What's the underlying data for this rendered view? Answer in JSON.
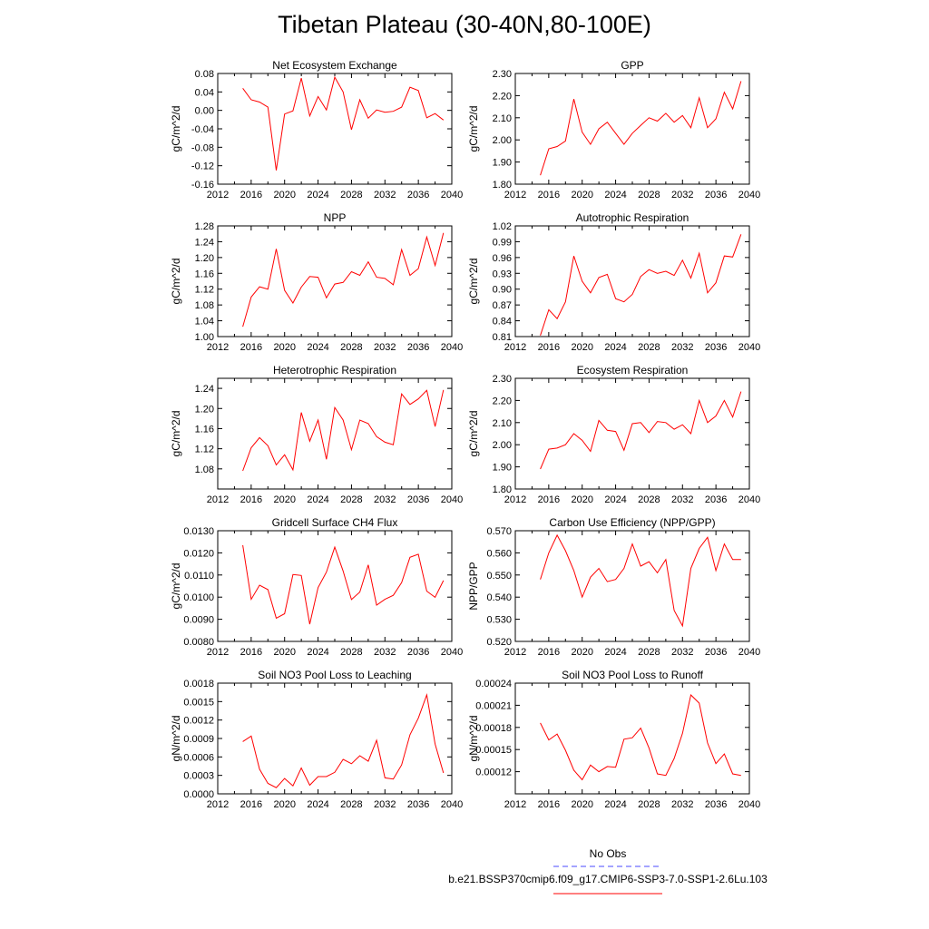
{
  "page": {
    "title": "Tibetan Plateau (30-40N,80-100E)"
  },
  "legend": {
    "entries": [
      {
        "label": "No Obs",
        "color": "#4a4aff",
        "dash": true
      },
      {
        "label": "b.e21.BSSP370cmip6.f09_g17.CMIP6-SSP3-7.0-SSP1-2.6Lu.103",
        "color": "#ff0000",
        "dash": false
      }
    ]
  },
  "chart_data": [
    {
      "type": "line",
      "title": "Net Ecosystem Exchange",
      "ylabel": "gC/m^2/d",
      "xlabel": "",
      "xlim": [
        2012,
        2040
      ],
      "xticks": [
        2012,
        2016,
        2020,
        2024,
        2028,
        2032,
        2036,
        2040
      ],
      "ylim": [
        -0.16,
        0.08
      ],
      "yticks": [
        -0.16,
        -0.12,
        -0.08,
        -0.04,
        0.0,
        0.04,
        0.08
      ],
      "ytick_labels": [
        "-0.16",
        "-0.12",
        "-0.08",
        "-0.04",
        "0.00",
        "0.04",
        "0.08"
      ],
      "series": [
        {
          "color": "#ff0000",
          "x": [
            2015,
            2016,
            2017,
            2018,
            2019,
            2020,
            2021,
            2022,
            2023,
            2024,
            2025,
            2026,
            2027,
            2028,
            2029,
            2030,
            2031,
            2032,
            2033,
            2034,
            2035,
            2036,
            2037,
            2038,
            2039
          ],
          "y": [
            0.048,
            0.023,
            0.018,
            0.007,
            -0.13,
            -0.008,
            -0.001,
            0.07,
            -0.012,
            0.03,
            0.001,
            0.072,
            0.04,
            -0.042,
            0.023,
            -0.017,
            0.001,
            -0.004,
            -0.002,
            0.007,
            0.05,
            0.043,
            -0.016,
            -0.007,
            -0.021
          ]
        }
      ]
    },
    {
      "type": "line",
      "title": "GPP",
      "ylabel": "gC/m^2/d",
      "xlabel": "",
      "xlim": [
        2012,
        2040
      ],
      "xticks": [
        2012,
        2016,
        2020,
        2024,
        2028,
        2032,
        2036,
        2040
      ],
      "ylim": [
        1.8,
        2.3
      ],
      "yticks": [
        1.8,
        1.9,
        2.0,
        2.1,
        2.2,
        2.3
      ],
      "ytick_labels": [
        "1.80",
        "1.90",
        "2.00",
        "2.10",
        "2.20",
        "2.30"
      ],
      "series": [
        {
          "color": "#ff0000",
          "x": [
            2015,
            2016,
            2017,
            2018,
            2019,
            2020,
            2021,
            2022,
            2023,
            2024,
            2025,
            2026,
            2027,
            2028,
            2029,
            2030,
            2031,
            2032,
            2033,
            2034,
            2035,
            2036,
            2037,
            2038,
            2039
          ],
          "y": [
            1.84,
            1.96,
            1.97,
            1.995,
            2.185,
            2.035,
            1.98,
            2.05,
            2.08,
            2.03,
            1.98,
            2.03,
            2.065,
            2.1,
            2.085,
            2.12,
            2.08,
            2.11,
            2.055,
            2.19,
            2.055,
            2.095,
            2.215,
            2.14,
            2.265
          ]
        }
      ]
    },
    {
      "type": "line",
      "title": "NPP",
      "ylabel": "gC/m^2/d",
      "xlabel": "",
      "xlim": [
        2012,
        2040
      ],
      "xticks": [
        2012,
        2016,
        2020,
        2024,
        2028,
        2032,
        2036,
        2040
      ],
      "ylim": [
        1.0,
        1.28
      ],
      "yticks": [
        1.0,
        1.04,
        1.08,
        1.12,
        1.16,
        1.2,
        1.24,
        1.28
      ],
      "ytick_labels": [
        "1.00",
        "1.04",
        "1.08",
        "1.12",
        "1.16",
        "1.20",
        "1.24",
        "1.28"
      ],
      "series": [
        {
          "color": "#ff0000",
          "x": [
            2015,
            2016,
            2017,
            2018,
            2019,
            2020,
            2021,
            2022,
            2023,
            2024,
            2025,
            2026,
            2027,
            2028,
            2029,
            2030,
            2031,
            2032,
            2033,
            2034,
            2035,
            2036,
            2037,
            2038,
            2039
          ],
          "y": [
            1.025,
            1.1,
            1.126,
            1.12,
            1.222,
            1.117,
            1.085,
            1.125,
            1.152,
            1.15,
            1.098,
            1.133,
            1.137,
            1.164,
            1.155,
            1.189,
            1.15,
            1.147,
            1.131,
            1.22,
            1.155,
            1.172,
            1.252,
            1.18,
            1.262
          ]
        }
      ]
    },
    {
      "type": "line",
      "title": "Autotrophic Respiration",
      "ylabel": "gC/m^2/d",
      "xlabel": "",
      "xlim": [
        2012,
        2040
      ],
      "xticks": [
        2012,
        2016,
        2020,
        2024,
        2028,
        2032,
        2036,
        2040
      ],
      "ylim": [
        0.81,
        1.02
      ],
      "yticks": [
        0.81,
        0.84,
        0.87,
        0.9,
        0.93,
        0.96,
        0.99,
        1.02
      ],
      "ytick_labels": [
        "0.81",
        "0.84",
        "0.87",
        "0.90",
        "0.93",
        "0.96",
        "0.99",
        "1.02"
      ],
      "series": [
        {
          "color": "#ff0000",
          "x": [
            2015,
            2016,
            2017,
            2018,
            2019,
            2020,
            2021,
            2022,
            2023,
            2024,
            2025,
            2026,
            2027,
            2028,
            2029,
            2030,
            2031,
            2032,
            2033,
            2034,
            2035,
            2036,
            2037,
            2038,
            2039
          ],
          "y": [
            0.812,
            0.861,
            0.844,
            0.876,
            0.963,
            0.915,
            0.893,
            0.922,
            0.928,
            0.882,
            0.876,
            0.89,
            0.924,
            0.937,
            0.93,
            0.934,
            0.926,
            0.955,
            0.921,
            0.968,
            0.893,
            0.912,
            0.963,
            0.961,
            1.004
          ]
        }
      ]
    },
    {
      "type": "line",
      "title": "Heterotrophic Respiration",
      "ylabel": "gC/m^2/d",
      "xlabel": "",
      "xlim": [
        2012,
        2040
      ],
      "xticks": [
        2012,
        2016,
        2020,
        2024,
        2028,
        2032,
        2036,
        2040
      ],
      "ylim": [
        1.04,
        1.26
      ],
      "yticks": [
        1.08,
        1.12,
        1.16,
        1.2,
        1.24
      ],
      "ytick_labels": [
        "1.08",
        "1.12",
        "1.16",
        "1.20",
        "1.24"
      ],
      "series": [
        {
          "color": "#ff0000",
          "x": [
            2015,
            2016,
            2017,
            2018,
            2019,
            2020,
            2021,
            2022,
            2023,
            2024,
            2025,
            2026,
            2027,
            2028,
            2029,
            2030,
            2031,
            2032,
            2033,
            2034,
            2035,
            2036,
            2037,
            2038,
            2039
          ],
          "y": [
            1.076,
            1.122,
            1.142,
            1.126,
            1.088,
            1.108,
            1.078,
            1.192,
            1.135,
            1.177,
            1.099,
            1.202,
            1.177,
            1.118,
            1.177,
            1.17,
            1.144,
            1.133,
            1.128,
            1.229,
            1.208,
            1.219,
            1.236,
            1.164,
            1.237
          ]
        }
      ]
    },
    {
      "type": "line",
      "title": "Ecosystem Respiration",
      "ylabel": "gC/m^2/d",
      "xlabel": "",
      "xlim": [
        2012,
        2040
      ],
      "xticks": [
        2012,
        2016,
        2020,
        2024,
        2028,
        2032,
        2036,
        2040
      ],
      "ylim": [
        1.8,
        2.3
      ],
      "yticks": [
        1.8,
        1.9,
        2.0,
        2.1,
        2.2,
        2.3
      ],
      "ytick_labels": [
        "1.80",
        "1.90",
        "2.00",
        "2.10",
        "2.20",
        "2.30"
      ],
      "series": [
        {
          "color": "#ff0000",
          "x": [
            2015,
            2016,
            2017,
            2018,
            2019,
            2020,
            2021,
            2022,
            2023,
            2024,
            2025,
            2026,
            2027,
            2028,
            2029,
            2030,
            2031,
            2032,
            2033,
            2034,
            2035,
            2036,
            2037,
            2038,
            2039
          ],
          "y": [
            1.89,
            1.98,
            1.985,
            2.0,
            2.05,
            2.02,
            1.97,
            2.11,
            2.065,
            2.06,
            1.975,
            2.095,
            2.1,
            2.055,
            2.105,
            2.1,
            2.07,
            2.09,
            2.05,
            2.2,
            2.1,
            2.13,
            2.2,
            2.125,
            2.24
          ]
        }
      ]
    },
    {
      "type": "line",
      "title": "Gridcell Surface CH4 Flux",
      "ylabel": "gC/m^2/d",
      "xlabel": "",
      "xlim": [
        2012,
        2040
      ],
      "xticks": [
        2012,
        2016,
        2020,
        2024,
        2028,
        2032,
        2036,
        2040
      ],
      "ylim": [
        0.008,
        0.013
      ],
      "yticks": [
        0.008,
        0.009,
        0.01,
        0.011,
        0.012,
        0.013
      ],
      "ytick_labels": [
        "0.0080",
        "0.0090",
        "0.0100",
        "0.0110",
        "0.0120",
        "0.0130"
      ],
      "series": [
        {
          "color": "#ff0000",
          "x": [
            2015,
            2016,
            2017,
            2018,
            2019,
            2020,
            2021,
            2022,
            2023,
            2024,
            2025,
            2026,
            2027,
            2028,
            2029,
            2030,
            2031,
            2032,
            2033,
            2034,
            2035,
            2036,
            2037,
            2038,
            2039
          ],
          "y": [
            0.01235,
            0.0099,
            0.01054,
            0.01034,
            0.00905,
            0.00925,
            0.01102,
            0.01098,
            0.00878,
            0.01043,
            0.01113,
            0.01226,
            0.01118,
            0.00989,
            0.01023,
            0.01146,
            0.00964,
            0.0099,
            0.01008,
            0.01066,
            0.0118,
            0.01194,
            0.01027,
            0.00999,
            0.01075
          ]
        }
      ]
    },
    {
      "type": "line",
      "title": "Carbon Use Efficiency (NPP/GPP)",
      "ylabel": "NPP/GPP",
      "xlabel": "",
      "xlim": [
        2012,
        2040
      ],
      "xticks": [
        2012,
        2016,
        2020,
        2024,
        2028,
        2032,
        2036,
        2040
      ],
      "ylim": [
        0.52,
        0.57
      ],
      "yticks": [
        0.52,
        0.53,
        0.54,
        0.55,
        0.56,
        0.57
      ],
      "ytick_labels": [
        "0.520",
        "0.530",
        "0.540",
        "0.550",
        "0.560",
        "0.570"
      ],
      "series": [
        {
          "color": "#ff0000",
          "x": [
            2015,
            2016,
            2017,
            2018,
            2019,
            2020,
            2021,
            2022,
            2023,
            2024,
            2025,
            2026,
            2027,
            2028,
            2029,
            2030,
            2031,
            2032,
            2033,
            2034,
            2035,
            2036,
            2037,
            2038,
            2039
          ],
          "y": [
            0.548,
            0.56,
            0.568,
            0.561,
            0.552,
            0.54,
            0.549,
            0.553,
            0.547,
            0.548,
            0.553,
            0.564,
            0.554,
            0.556,
            0.551,
            0.557,
            0.534,
            0.527,
            0.553,
            0.562,
            0.567,
            0.552,
            0.564,
            0.557,
            0.557
          ]
        }
      ]
    },
    {
      "type": "line",
      "title": "Soil NO3 Pool Loss to Leaching",
      "ylabel": "gN/m^2/d",
      "xlabel": "",
      "xlim": [
        2012,
        2040
      ],
      "xticks": [
        2012,
        2016,
        2020,
        2024,
        2028,
        2032,
        2036,
        2040
      ],
      "ylim": [
        0.0,
        0.0018
      ],
      "yticks": [
        0.0,
        0.0003,
        0.0006,
        0.0009,
        0.0012,
        0.0015,
        0.0018
      ],
      "ytick_labels": [
        "0.0000",
        "0.0003",
        "0.0006",
        "0.0009",
        "0.0012",
        "0.0015",
        "0.0018"
      ],
      "series": [
        {
          "color": "#ff0000",
          "x": [
            2015,
            2016,
            2017,
            2018,
            2019,
            2020,
            2021,
            2022,
            2023,
            2024,
            2025,
            2026,
            2027,
            2028,
            2029,
            2030,
            2031,
            2032,
            2033,
            2034,
            2035,
            2036,
            2037,
            2038,
            2039
          ],
          "y": [
            0.00085,
            0.00094,
            0.0004,
            0.00017,
            0.0001,
            0.00025,
            0.00013,
            0.00042,
            0.00014,
            0.00028,
            0.00028,
            0.00035,
            0.00056,
            0.00049,
            0.00062,
            0.00053,
            0.00087,
            0.00026,
            0.00024,
            0.00047,
            0.00096,
            0.00123,
            0.00161,
            0.00081,
            0.00034
          ]
        }
      ]
    },
    {
      "type": "line",
      "title": "Soil NO3 Pool Loss to Runoff",
      "ylabel": "gN/m^2/d",
      "xlabel": "",
      "xlim": [
        2012,
        2040
      ],
      "xticks": [
        2012,
        2016,
        2020,
        2024,
        2028,
        2032,
        2036,
        2040
      ],
      "ylim": [
        9e-05,
        0.00024
      ],
      "yticks": [
        0.00012,
        0.00015,
        0.00018,
        0.00021,
        0.00024
      ],
      "ytick_labels": [
        "0.00012",
        "0.00015",
        "0.00018",
        "0.00021",
        "0.00024"
      ],
      "series": [
        {
          "color": "#ff0000",
          "x": [
            2015,
            2016,
            2017,
            2018,
            2019,
            2020,
            2021,
            2022,
            2023,
            2024,
            2025,
            2026,
            2027,
            2028,
            2029,
            2030,
            2031,
            2032,
            2033,
            2034,
            2035,
            2036,
            2037,
            2038,
            2039
          ],
          "y": [
            0.000186,
            0.000163,
            0.000171,
            0.000149,
            0.000122,
            0.000109,
            0.000129,
            0.00012,
            0.000127,
            0.000126,
            0.000164,
            0.000166,
            0.000179,
            0.000152,
            0.000117,
            0.000115,
            0.000138,
            0.000172,
            0.000224,
            0.000213,
            0.000159,
            0.000131,
            0.000144,
            0.000117,
            0.000115
          ]
        }
      ]
    }
  ]
}
